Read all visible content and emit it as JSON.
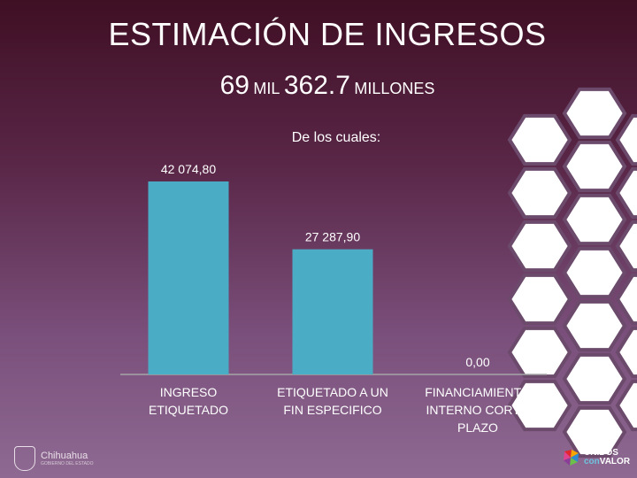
{
  "slide": {
    "title": "ESTIMACIÓN DE INGRESOS",
    "subtitle": {
      "part1": "69",
      "part2": "MIL",
      "part3": "362.7",
      "part4": "MILLONES"
    },
    "caption": "De los cuales:"
  },
  "chart_data": {
    "type": "bar",
    "categories": [
      "INGRESO ETIQUETADO",
      "ETIQUETADO A UN FIN ESPECIFICO",
      "FINANCIAMIENTO INTERNO CORTO PLAZO"
    ],
    "values": [
      42074.8,
      27287.9,
      0.0
    ],
    "data_labels": [
      "42 074,80",
      "27 287,90",
      "0,00"
    ],
    "category_label_lines": [
      [
        "INGRESO",
        "ETIQUETADO"
      ],
      [
        "ETIQUETADO A UN",
        "FIN ESPECIFICO"
      ],
      [
        "FINANCIAMIENTO",
        "INTERNO CORTO",
        "PLAZO"
      ]
    ],
    "ylim": [
      0,
      42074.8
    ],
    "bar_color": "#4bacc6",
    "grid": false,
    "title": "",
    "xlabel": "",
    "ylabel": ""
  },
  "colors": {
    "axis": "#a6a6a6",
    "hex_fill": "#ffffff"
  },
  "logos": {
    "left_text": "Chihuahua",
    "left_subtext": "GOBIERNO DEL ESTADO",
    "right_line1": "UNIDOS",
    "right_line2_a": "con",
    "right_line2_b": "VALOR"
  }
}
